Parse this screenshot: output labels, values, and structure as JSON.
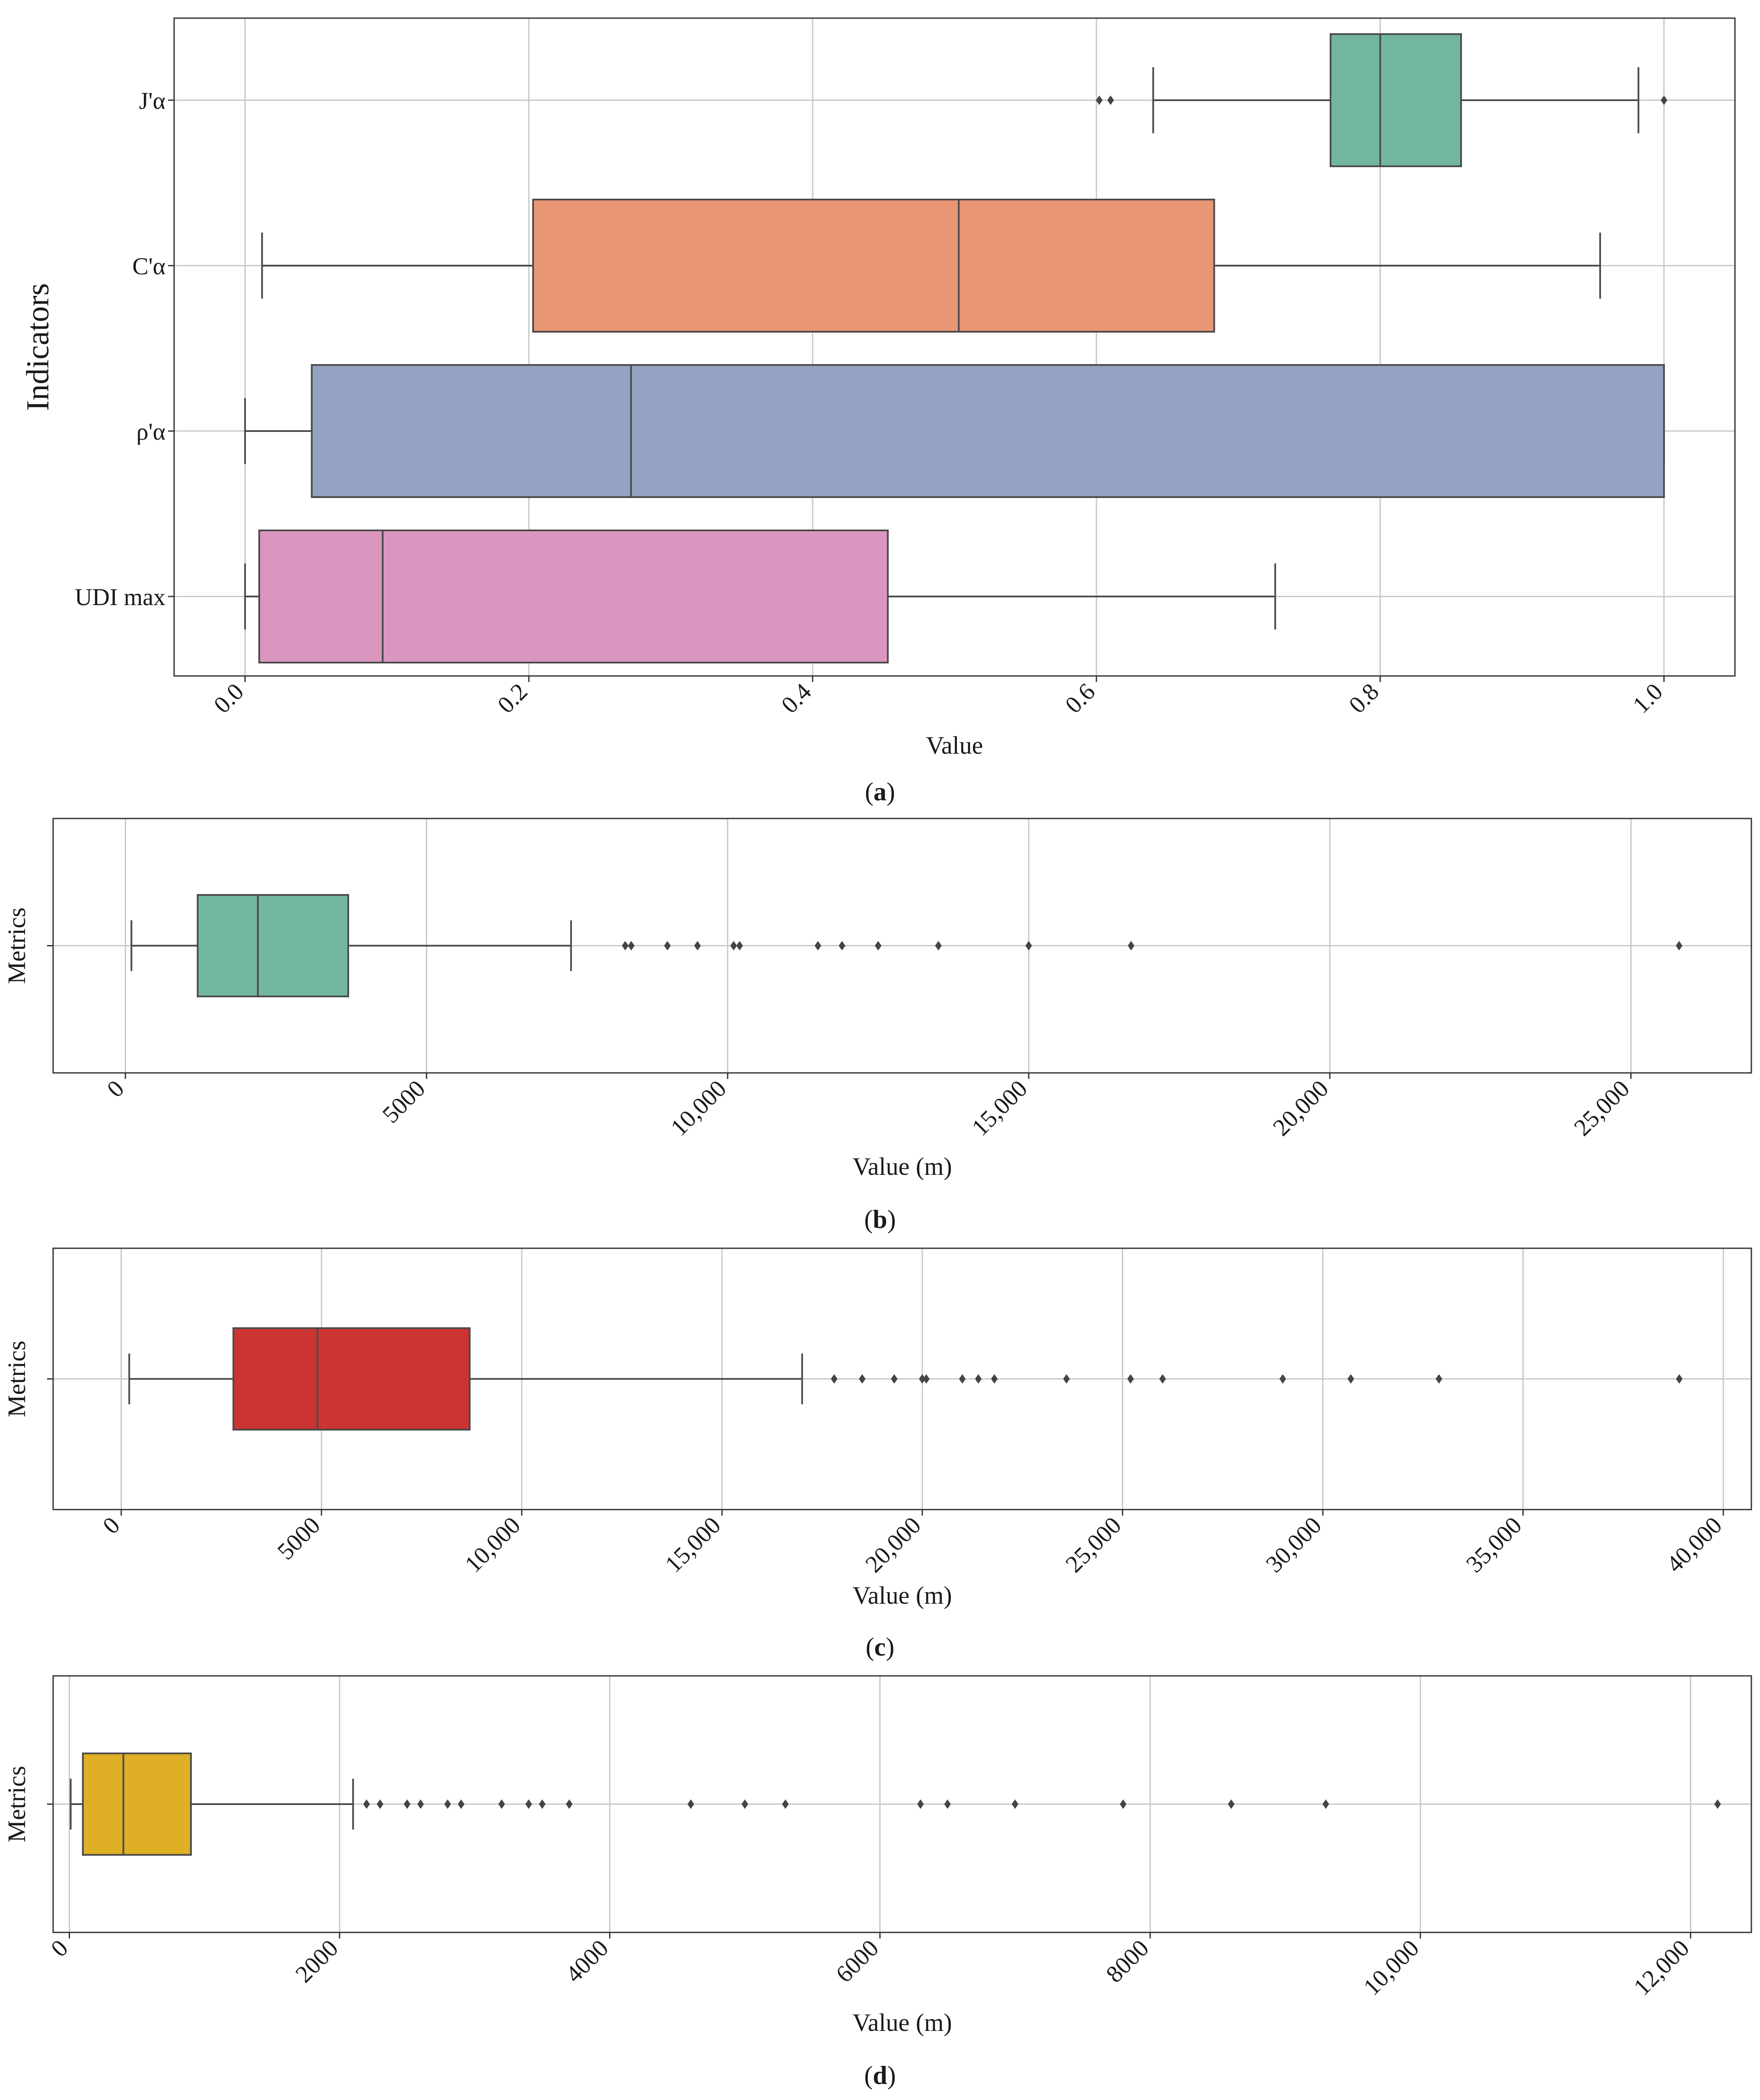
{
  "chart_data": [
    {
      "type": "boxplot",
      "orientation": "horizontal",
      "panel_label": "a",
      "xlabel": "Value",
      "ylabel": "Indicators",
      "xlim": [
        -0.05,
        1.05
      ],
      "xticks": [
        0,
        0.2,
        0.4,
        0.6,
        0.8,
        1.0
      ],
      "xtick_labels": [
        "0.0",
        "0.2",
        "0.4",
        "0.6",
        "0.8",
        "1.0"
      ],
      "grid": true,
      "boxes": [
        {
          "label": "J'α",
          "color": "#72b6a1",
          "whisker_low": 0.64,
          "q1": 0.765,
          "median": 0.8,
          "q3": 0.857,
          "whisker_high": 0.982,
          "fliers": [
            0.602,
            0.61,
            1.0
          ]
        },
        {
          "label": "C'α",
          "color": "#e99675",
          "whisker_low": 0.012,
          "q1": 0.203,
          "median": 0.503,
          "q3": 0.683,
          "whisker_high": 0.955,
          "fliers": []
        },
        {
          "label": "ρ'α",
          "color": "#95a3c3",
          "whisker_low": 0.0,
          "q1": 0.047,
          "median": 0.272,
          "q3": 1.0,
          "whisker_high": 1.0,
          "fliers": []
        },
        {
          "label": "UDI max",
          "color": "#db96c0",
          "whisker_low": 0.0,
          "q1": 0.01,
          "median": 0.097,
          "q3": 0.453,
          "whisker_high": 0.726,
          "fliers": []
        }
      ]
    },
    {
      "type": "boxplot",
      "orientation": "horizontal",
      "panel_label": "b",
      "xlabel": "Value (m)",
      "ylabel": "Metrics",
      "xlim": [
        -1200,
        27000
      ],
      "xticks": [
        0,
        5000,
        10000,
        15000,
        20000,
        25000
      ],
      "xtick_labels": [
        "0",
        "5000",
        "10,000",
        "15,000",
        "20,000",
        "25,000"
      ],
      "grid": true,
      "boxes": [
        {
          "label": "",
          "color": "#72b6a1",
          "whisker_low": 100,
          "q1": 1200,
          "median": 2200,
          "q3": 3700,
          "whisker_high": 7400,
          "fliers": [
            8300,
            8400,
            9000,
            9500,
            10100,
            10200,
            11500,
            11900,
            12500,
            13500,
            15000,
            16700,
            25800
          ]
        }
      ]
    },
    {
      "type": "boxplot",
      "orientation": "horizontal",
      "panel_label": "c",
      "xlabel": "Value (m)",
      "ylabel": "Metrics",
      "xlim": [
        -1700,
        40700
      ],
      "xticks": [
        0,
        5000,
        10000,
        15000,
        20000,
        25000,
        30000,
        35000,
        40000
      ],
      "xtick_labels": [
        "0",
        "5000",
        "10,000",
        "15,000",
        "20,000",
        "25,000",
        "30,000",
        "35,000",
        "40,000"
      ],
      "grid": true,
      "boxes": [
        {
          "label": "",
          "color": "#cc3333",
          "whisker_low": 200,
          "q1": 2800,
          "median": 4900,
          "q3": 8700,
          "whisker_high": 17000,
          "fliers": [
            17800,
            18500,
            19300,
            20000,
            20100,
            21000,
            21400,
            21800,
            23600,
            25200,
            26000,
            29000,
            30700,
            32900,
            38900
          ]
        }
      ]
    },
    {
      "type": "boxplot",
      "orientation": "horizontal",
      "panel_label": "d",
      "xlabel": "Value (m)",
      "ylabel": "Metrics",
      "xlim": [
        -120,
        12450
      ],
      "xticks": [
        0,
        2000,
        4000,
        6000,
        8000,
        10000,
        12000
      ],
      "xtick_labels": [
        "0",
        "2000",
        "4000",
        "6000",
        "8000",
        "10,000",
        "12,000"
      ],
      "grid": true,
      "boxes": [
        {
          "label": "",
          "color": "#dfb025",
          "whisker_low": 10,
          "q1": 100,
          "median": 400,
          "q3": 900,
          "whisker_high": 2100,
          "fliers": [
            2200,
            2300,
            2500,
            2600,
            2800,
            2900,
            3200,
            3400,
            3500,
            3700,
            4600,
            5000,
            5300,
            6300,
            6500,
            7000,
            7800,
            8600,
            9300,
            12200
          ]
        }
      ]
    }
  ]
}
